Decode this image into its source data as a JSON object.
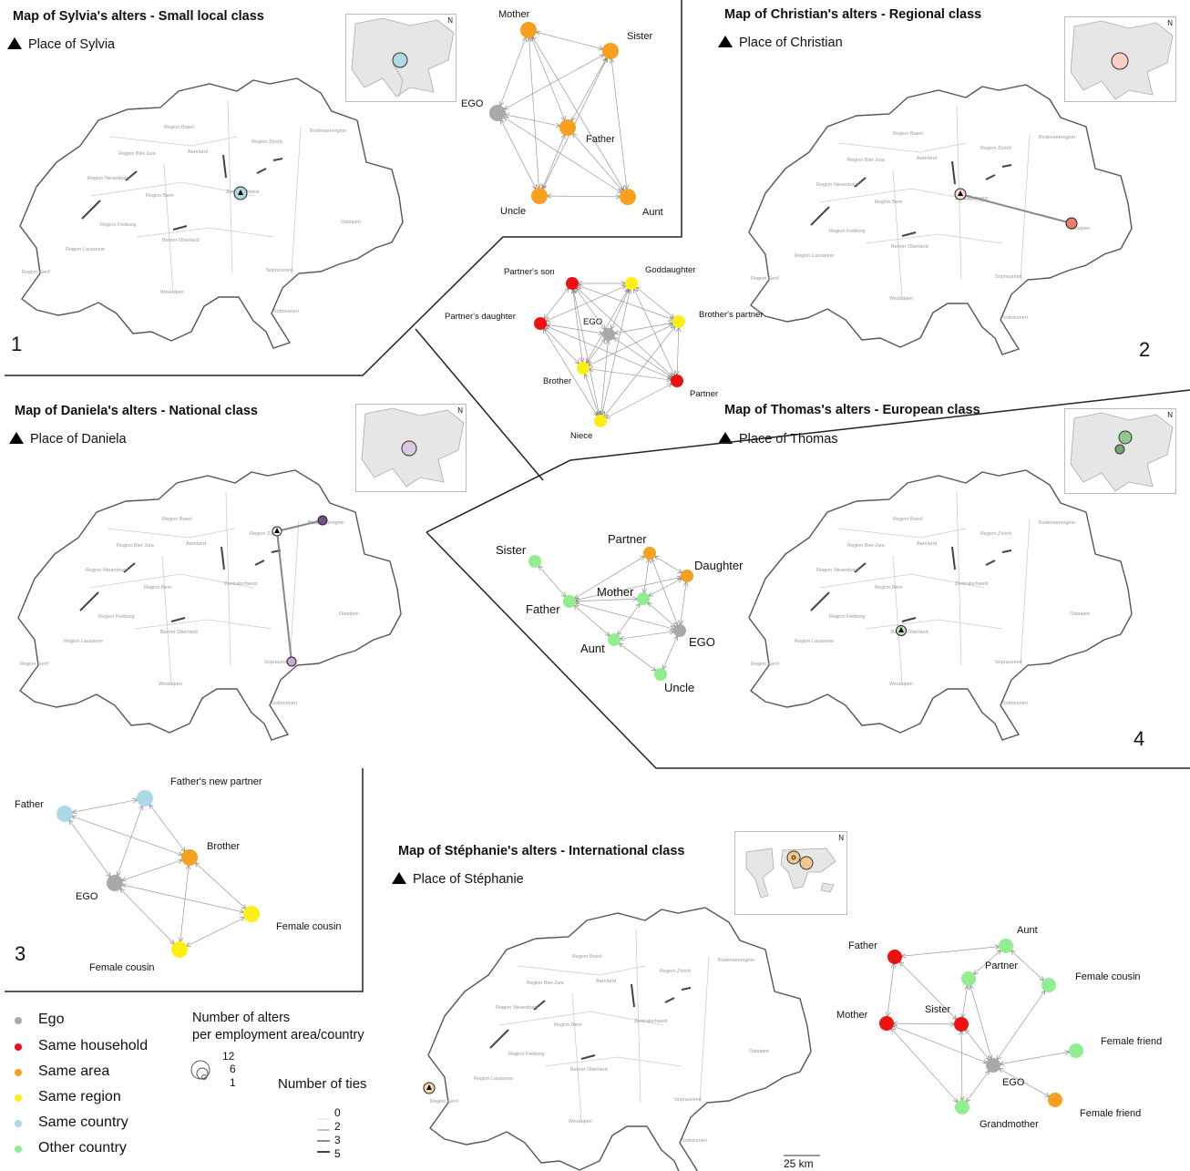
{
  "panels": [
    {
      "title": "Map of Sylvia's alters - Small local class",
      "place": "Place of Sylvia",
      "number": "1"
    },
    {
      "title": "Map of Christian's alters - Regional class",
      "place": "Place of Christian",
      "number": "2"
    },
    {
      "title": "Map of Daniela's alters - National class",
      "place": "Place of Daniela",
      "number": "3"
    },
    {
      "title": "Map of Thomas's alters - European class",
      "place": "Place of Thomas",
      "number": "4"
    },
    {
      "title": "Map of Stéphanie's alters - International class",
      "place": "Place of Stéphanie"
    }
  ],
  "map_regions": [
    "Region Basel",
    "Region Zürich",
    "Bodenseeregion",
    "Region Biel-Jura",
    "Aareland",
    "Region Neuenburg",
    "Region Bern",
    "Zentralschweiz",
    "Region Freiburg",
    "Berner Oberland",
    "Ostalpen",
    "Region Lausanne",
    "Region Genf",
    "Sopraceneri",
    "Westalpen",
    "Sottoceneri"
  ],
  "colors": {
    "ego": "#a9a9a9",
    "same_household": "#ee1111",
    "same_area": "#f7a020",
    "same_region": "#ffee11",
    "same_country": "#add8e6",
    "other_country": "#90ee90"
  },
  "networks": {
    "sylvia": {
      "nodes": [
        {
          "label": "Mother",
          "cat": "same_area"
        },
        {
          "label": "Sister",
          "cat": "same_area"
        },
        {
          "label": "EGO",
          "cat": "ego"
        },
        {
          "label": "Father",
          "cat": "same_area"
        },
        {
          "label": "Uncle",
          "cat": "same_area"
        },
        {
          "label": "Aunt",
          "cat": "same_area"
        }
      ]
    },
    "christian": {
      "nodes": [
        {
          "label": "Partner's son",
          "cat": "same_household"
        },
        {
          "label": "Goddaughter",
          "cat": "same_region"
        },
        {
          "label": "Partner's daughter",
          "cat": "same_household"
        },
        {
          "label": "EGO",
          "cat": "ego"
        },
        {
          "label": "Brother's partner",
          "cat": "same_region"
        },
        {
          "label": "Brother",
          "cat": "same_region"
        },
        {
          "label": "Partner",
          "cat": "same_household"
        },
        {
          "label": "Niece",
          "cat": "same_region"
        }
      ]
    },
    "daniela": {
      "nodes": [
        {
          "label": "Father",
          "cat": "same_country"
        },
        {
          "label": "Father's new partner",
          "cat": "same_country"
        },
        {
          "label": "Brother",
          "cat": "same_area"
        },
        {
          "label": "EGO",
          "cat": "ego"
        },
        {
          "label": "Female cousin",
          "cat": "same_region"
        },
        {
          "label": "Female cousin",
          "cat": "same_region"
        }
      ]
    },
    "thomas": {
      "nodes": [
        {
          "label": "Sister",
          "cat": "other_country"
        },
        {
          "label": "Partner",
          "cat": "same_area"
        },
        {
          "label": "Daughter",
          "cat": "same_area"
        },
        {
          "label": "Mother",
          "cat": "other_country"
        },
        {
          "label": "Father",
          "cat": "other_country"
        },
        {
          "label": "Aunt",
          "cat": "other_country"
        },
        {
          "label": "EGO",
          "cat": "ego"
        },
        {
          "label": "Uncle",
          "cat": "other_country"
        }
      ]
    },
    "stephanie": {
      "nodes": [
        {
          "label": "Aunt",
          "cat": "other_country"
        },
        {
          "label": "Father",
          "cat": "same_household"
        },
        {
          "label": "Partner",
          "cat": "other_country"
        },
        {
          "label": "Female cousin",
          "cat": "other_country"
        },
        {
          "label": "Mother",
          "cat": "same_household"
        },
        {
          "label": "Sister",
          "cat": "same_household"
        },
        {
          "label": "Female friend",
          "cat": "other_country"
        },
        {
          "label": "EGO",
          "cat": "ego"
        },
        {
          "label": "Grandmother",
          "cat": "other_country"
        },
        {
          "label": "Female friend",
          "cat": "same_area"
        }
      ]
    }
  },
  "legend": {
    "categories": [
      {
        "label": "Ego",
        "cat": "ego"
      },
      {
        "label": "Same household",
        "cat": "same_household"
      },
      {
        "label": "Same area",
        "cat": "same_area"
      },
      {
        "label": "Same region",
        "cat": "same_region"
      },
      {
        "label": "Same country",
        "cat": "same_country"
      },
      {
        "label": "Other country",
        "cat": "other_country"
      }
    ],
    "size_title_1": "Number of alters",
    "size_title_2": "per employment area/country",
    "size_values": [
      "12",
      "6",
      "1"
    ],
    "ties_title": "Number of ties",
    "ties_values": [
      "0",
      "2",
      "3",
      "5"
    ]
  },
  "scale": "25 km",
  "inset_north": "N"
}
